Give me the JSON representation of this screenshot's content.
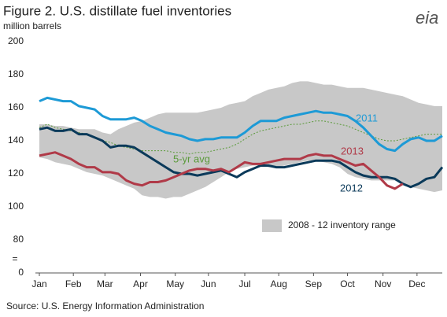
{
  "chart_data": {
    "type": "line",
    "title": "Figure 2. U.S. distillate fuel inventories",
    "subtitle": "million barrels",
    "source": "Source: U.S. Energy Information Administration",
    "logo": "eia",
    "x": [
      1,
      2,
      3,
      4,
      5,
      6,
      7,
      8,
      9,
      10,
      11,
      12,
      13,
      14,
      15,
      16,
      17,
      18,
      19,
      20,
      21,
      22,
      23,
      24,
      25,
      26,
      27,
      28,
      29,
      30,
      31,
      32,
      33,
      34,
      35,
      36,
      37,
      38,
      39,
      40,
      41,
      42,
      43,
      44,
      45,
      46,
      47,
      48,
      49,
      50,
      51,
      52
    ],
    "xlim": [
      0.5,
      52
    ],
    "xticks": [
      {
        "value": 1,
        "label": "Jan"
      },
      {
        "value": 5.3,
        "label": "Feb"
      },
      {
        "value": 9.3,
        "label": "Mar"
      },
      {
        "value": 13.8,
        "label": "Apr"
      },
      {
        "value": 18.2,
        "label": "May"
      },
      {
        "value": 22.4,
        "label": "Jun"
      },
      {
        "value": 27,
        "label": "Jul"
      },
      {
        "value": 31.3,
        "label": "Aug"
      },
      {
        "value": 35.7,
        "label": "Sep"
      },
      {
        "value": 40,
        "label": "Oct"
      },
      {
        "value": 44.5,
        "label": "Nov"
      },
      {
        "value": 48.8,
        "label": "Dec"
      }
    ],
    "ylim": [
      0,
      200
    ],
    "axis_break": [
      0,
      80
    ],
    "yticks": [
      0,
      80,
      100,
      120,
      140,
      160,
      180,
      200
    ],
    "range": {
      "name": "2008 - 12 inventory range",
      "color": "#c8c8c8",
      "upper": [
        150,
        150,
        149,
        149,
        148,
        147,
        147,
        147,
        145,
        144,
        147,
        149,
        151,
        152,
        154,
        156,
        157,
        157,
        157,
        157,
        157,
        158,
        159,
        160,
        162,
        163,
        164,
        167,
        169,
        171,
        172,
        173,
        175,
        176,
        176,
        175,
        174,
        174,
        173,
        172,
        172,
        172,
        171,
        170,
        169,
        168,
        167,
        165,
        163,
        162,
        161,
        161
      ],
      "lower": [
        130,
        129,
        127,
        126,
        125,
        123,
        121,
        120,
        119,
        117,
        115,
        113,
        111,
        107,
        106,
        106,
        105,
        106,
        106,
        108,
        110,
        112,
        115,
        118,
        121,
        123,
        124,
        125,
        125,
        124,
        124,
        125,
        126,
        127,
        128,
        128,
        127,
        126,
        124,
        120,
        118,
        117,
        116,
        116,
        116,
        116,
        114,
        112,
        111,
        110,
        109,
        110
      ]
    },
    "series": [
      {
        "name": "5-yr avg",
        "color": "#5a9a3a",
        "dashed": true,
        "values": [
          148,
          150,
          148,
          147,
          146,
          145,
          144,
          142,
          140,
          139,
          137,
          136,
          135,
          134,
          134,
          134,
          134,
          133,
          133,
          132,
          133,
          133,
          134,
          135,
          136,
          138,
          141,
          144,
          146,
          147,
          148,
          149,
          150,
          150,
          151,
          152,
          152,
          151,
          150,
          149,
          147,
          145,
          143,
          141,
          140,
          140,
          141,
          142,
          143,
          144,
          144,
          144
        ]
      },
      {
        "name": "2011",
        "color": "#1d9ad6",
        "values": [
          164,
          166,
          165,
          164,
          164,
          161,
          160,
          159,
          155,
          153,
          153,
          153,
          154,
          152,
          149,
          147,
          145,
          144,
          143,
          141,
          140,
          141,
          141,
          142,
          142,
          142,
          145,
          149,
          152,
          152,
          152,
          154,
          155,
          156,
          157,
          158,
          157,
          157,
          156,
          155,
          152,
          148,
          143,
          138,
          135,
          134,
          138,
          141,
          142,
          140,
          140,
          143
        ]
      },
      {
        "name": "2012",
        "color": "#0b3a5a",
        "values": [
          147,
          148,
          146,
          146,
          147,
          144,
          144,
          142,
          140,
          136,
          137,
          137,
          136,
          133,
          130,
          127,
          124,
          121,
          120,
          120,
          119,
          120,
          121,
          122,
          120,
          118,
          121,
          123,
          125,
          125,
          124,
          124,
          125,
          126,
          127,
          128,
          128,
          128,
          127,
          124,
          121,
          119,
          118,
          118,
          118,
          117,
          114,
          112,
          114,
          117,
          118,
          124
        ]
      },
      {
        "name": "2013",
        "color": "#b03a48",
        "values": [
          131,
          132,
          133,
          131,
          129,
          126,
          124,
          124,
          121,
          121,
          120,
          116,
          114,
          113,
          115,
          115,
          116,
          118,
          120,
          122,
          123,
          123,
          122,
          123,
          121,
          124,
          127,
          126,
          126,
          127,
          128,
          129,
          129,
          129,
          131,
          132,
          131,
          131,
          129,
          127,
          125,
          126,
          122,
          118,
          113,
          111,
          114,
          null,
          null,
          null,
          null,
          null
        ]
      }
    ]
  }
}
